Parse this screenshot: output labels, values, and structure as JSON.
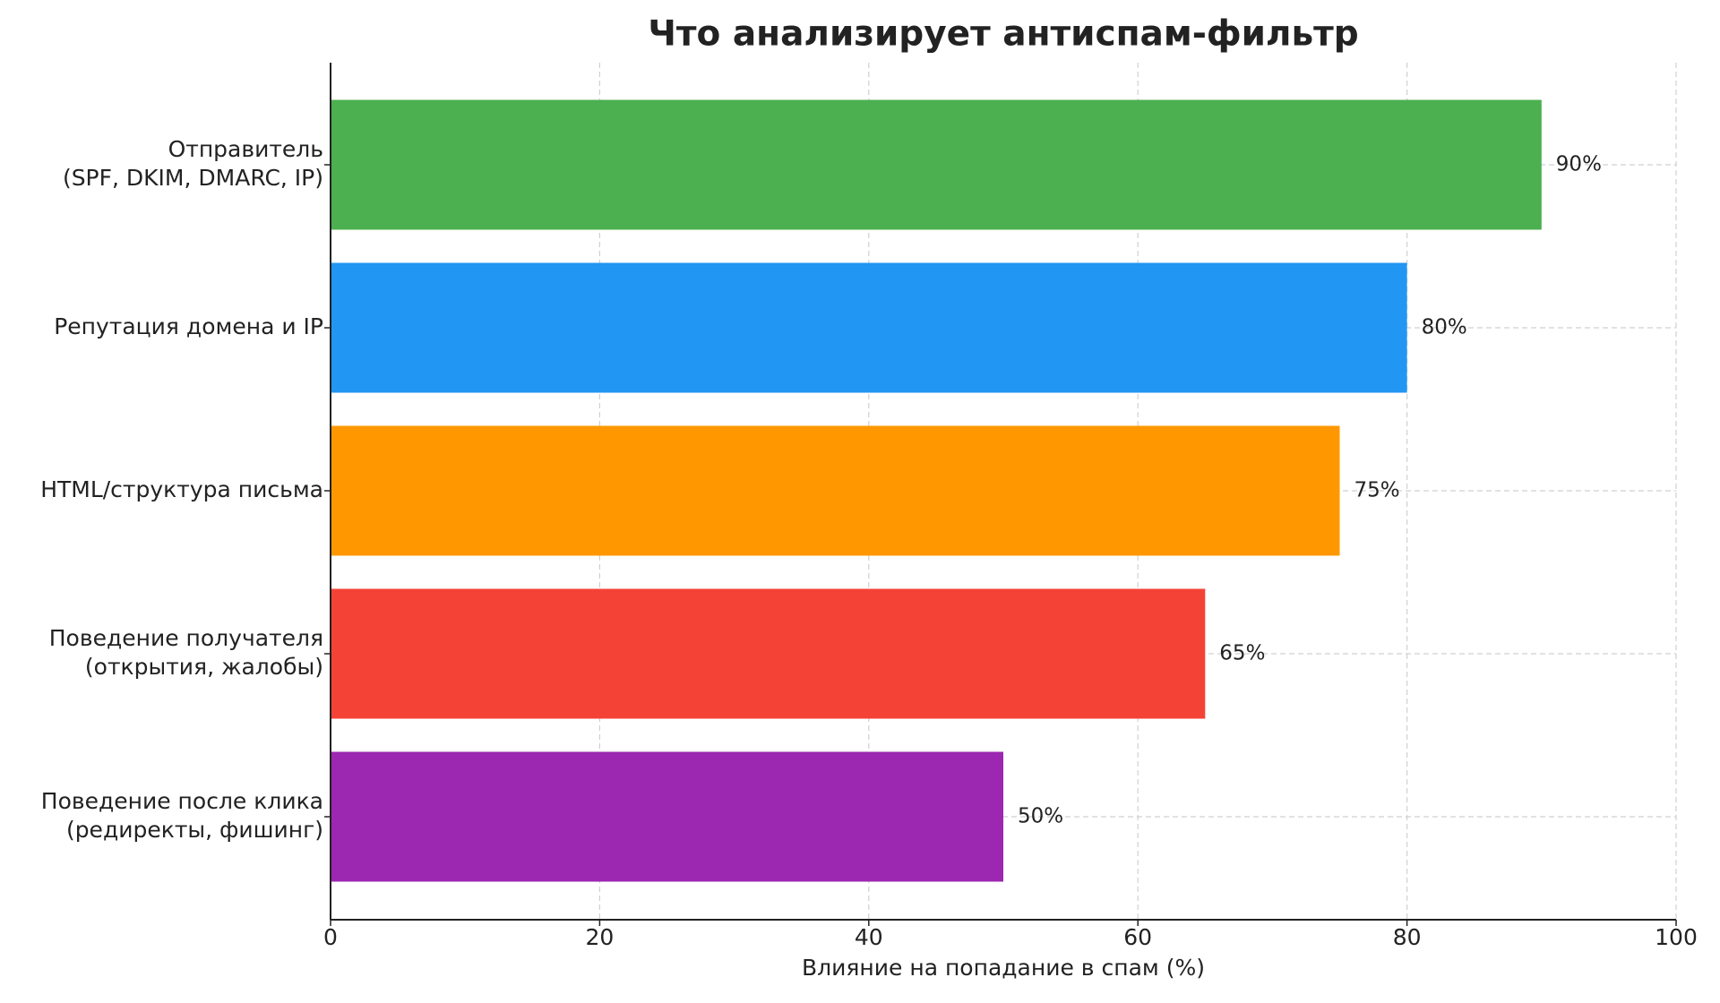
{
  "chart_data": {
    "type": "barh",
    "title": "Что анализирует антиспам-фильтр",
    "xlabel": "Влияние на попадание в спам (%)",
    "categories": [
      [
        "Отправитель",
        "(SPF, DKIM, DMARC, IP)"
      ],
      [
        "Репутация домена и IP"
      ],
      [
        "HTML/структура письма"
      ],
      [
        "Поведение получателя",
        "(открытия, жалобы)"
      ],
      [
        "Поведение после клика",
        "(редиректы, фишинг)"
      ]
    ],
    "values": [
      90,
      80,
      75,
      65,
      50
    ],
    "value_labels": [
      "90%",
      "80%",
      "75%",
      "65%",
      "50%"
    ],
    "colors": [
      "#4caf50",
      "#2196f3",
      "#ff9800",
      "#f44336",
      "#9c27b0"
    ],
    "xlim": [
      0,
      100
    ],
    "xticks": [
      0,
      20,
      40,
      60,
      80,
      100
    ],
    "grid": true
  }
}
